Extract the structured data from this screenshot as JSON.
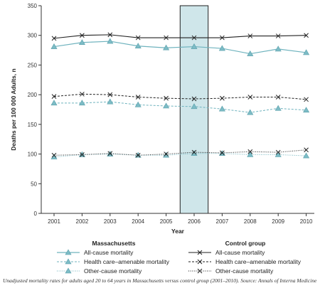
{
  "chart_data": {
    "type": "line",
    "xlabel": "Year",
    "ylabel": "Deaths per 100 000 Adults, n",
    "ylim": [
      0,
      350
    ],
    "yticks": [
      0,
      50,
      100,
      150,
      200,
      250,
      300,
      350
    ],
    "x": [
      "2001",
      "2002",
      "2003",
      "2004",
      "2005",
      "2006",
      "2007",
      "2008",
      "2009",
      "2010"
    ],
    "highlight_year": "2006",
    "grid": false,
    "series": [
      {
        "name": "All-cause mortality",
        "group": "Massachusetts",
        "values": [
          281,
          288,
          290,
          282,
          279,
          281,
          278,
          269,
          277,
          271
        ]
      },
      {
        "name": "Health care–amenable mortality",
        "group": "Massachusetts",
        "values": [
          186,
          186,
          188,
          183,
          181,
          180,
          176,
          170,
          177,
          174
        ]
      },
      {
        "name": "Other-cause mortality",
        "group": "Massachusetts",
        "values": [
          95,
          99,
          100,
          98,
          98,
          101,
          101,
          99,
          99,
          97
        ]
      },
      {
        "name": "All-cause mortality",
        "group": "Control group",
        "values": [
          295,
          300,
          301,
          296,
          296,
          296,
          296,
          299,
          299,
          300
        ]
      },
      {
        "name": "Health care–amenable mortality",
        "group": "Control group",
        "values": [
          197,
          201,
          200,
          196,
          194,
          193,
          194,
          196,
          196,
          192
        ]
      },
      {
        "name": "Other-cause mortality",
        "group": "Control group",
        "values": [
          98,
          99,
          101,
          98,
          100,
          103,
          102,
          104,
          103,
          107
        ]
      }
    ],
    "legend": {
      "groups": [
        "Massachusetts",
        "Control group"
      ]
    }
  },
  "caption": "Unadjusted mortality rates for adults aged 20 to 64 years in Massachusetts versus control group (2001–2010). Source: Annals of Interna Medicine"
}
